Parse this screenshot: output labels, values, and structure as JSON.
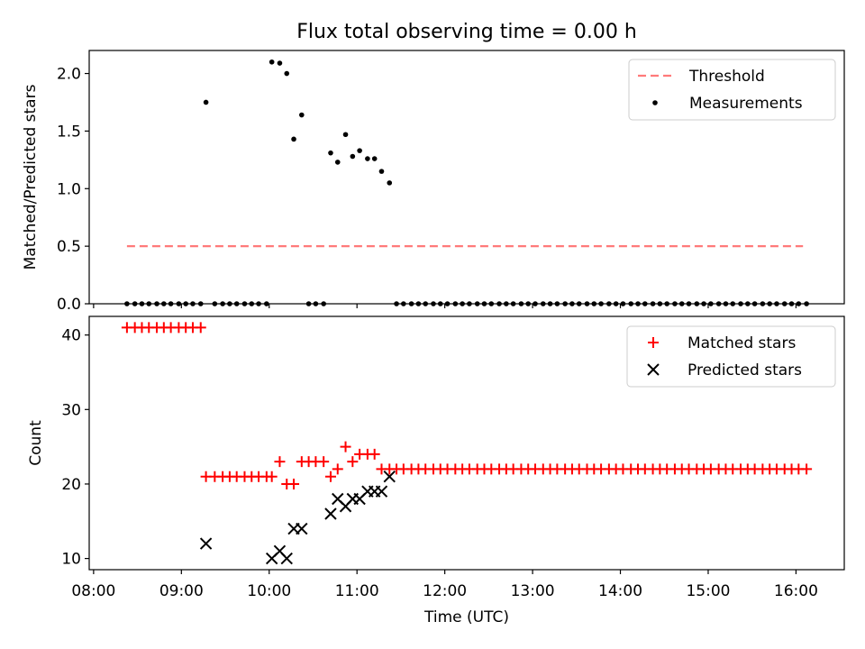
{
  "chart_data": [
    {
      "type": "scatter",
      "title": "Flux total observing time = 0.00 h",
      "xlabel": "",
      "ylabel": "Matched/Predicted stars",
      "xlim": [
        7.95,
        16.55
      ],
      "ylim": [
        0,
        2.2
      ],
      "yticks": [
        0.0,
        0.5,
        1.0,
        1.5,
        2.0
      ],
      "ytick_labels": [
        "0.0",
        "0.5",
        "1.0",
        "1.5",
        "2.0"
      ],
      "legend_position": "upper right",
      "series": [
        {
          "name": "Threshold",
          "kind": "line",
          "style": "dashed",
          "color": "#ff7a7a",
          "x": [
            8.38,
            16.08
          ],
          "values": [
            0.5,
            0.5
          ]
        },
        {
          "name": "Measurements",
          "kind": "scatter",
          "marker": "dot",
          "color": "#000000",
          "x": [
            8.38,
            8.47,
            8.55,
            8.63,
            8.72,
            8.8,
            8.88,
            8.97,
            9.05,
            9.13,
            9.22,
            9.28,
            9.38,
            9.47,
            9.55,
            9.63,
            9.72,
            9.8,
            9.88,
            9.97,
            10.03,
            10.12,
            10.2,
            10.28,
            10.37,
            10.45,
            10.53,
            10.62,
            10.7,
            10.78,
            10.87,
            10.95,
            11.03,
            11.12,
            11.2,
            11.28,
            11.37,
            11.45,
            11.53,
            11.62,
            11.7,
            11.78,
            11.87,
            11.95,
            12.03,
            12.12,
            12.2,
            12.28,
            12.37,
            12.45,
            12.53,
            12.62,
            12.7,
            12.78,
            12.87,
            12.95,
            13.03,
            13.12,
            13.2,
            13.28,
            13.37,
            13.45,
            13.53,
            13.62,
            13.7,
            13.78,
            13.87,
            13.95,
            14.03,
            14.12,
            14.2,
            14.28,
            14.37,
            14.45,
            14.53,
            14.62,
            14.7,
            14.78,
            14.87,
            14.95,
            15.03,
            15.12,
            15.2,
            15.28,
            15.37,
            15.45,
            15.53,
            15.62,
            15.7,
            15.78,
            15.87,
            15.95,
            16.03,
            16.12
          ],
          "values": [
            0,
            0,
            0,
            0,
            0,
            0,
            0,
            0,
            0,
            0,
            0,
            1.75,
            0,
            0,
            0,
            0,
            0,
            0,
            0,
            0,
            2.1,
            2.09,
            2.0,
            1.43,
            1.64,
            0,
            0,
            0,
            1.31,
            1.23,
            1.47,
            1.28,
            1.33,
            1.26,
            1.26,
            1.15,
            1.05,
            0,
            0,
            0,
            0,
            0,
            0,
            0,
            0,
            0,
            0,
            0,
            0,
            0,
            0,
            0,
            0,
            0,
            0,
            0,
            0,
            0,
            0,
            0,
            0,
            0,
            0,
            0,
            0,
            0,
            0,
            0,
            0,
            0,
            0,
            0,
            0,
            0,
            0,
            0,
            0,
            0,
            0,
            0,
            0,
            0,
            0,
            0,
            0,
            0,
            0,
            0,
            0,
            0,
            0,
            0,
            0,
            0
          ]
        }
      ]
    },
    {
      "type": "scatter",
      "title": "",
      "xlabel": "Time (UTC)",
      "ylabel": "Count",
      "xlim": [
        7.95,
        16.55
      ],
      "ylim": [
        8.5,
        42.5
      ],
      "yticks": [
        10,
        20,
        30,
        40
      ],
      "ytick_labels": [
        "10",
        "20",
        "30",
        "40"
      ],
      "xticks": [
        8,
        9,
        10,
        11,
        12,
        13,
        14,
        15,
        16
      ],
      "xtick_labels": [
        "08:00",
        "09:00",
        "10:00",
        "11:00",
        "12:00",
        "13:00",
        "14:00",
        "15:00",
        "16:00"
      ],
      "legend_position": "upper right",
      "series": [
        {
          "name": "Matched stars",
          "kind": "scatter",
          "marker": "plus",
          "color": "#ff0000",
          "x": [
            8.38,
            8.47,
            8.55,
            8.63,
            8.72,
            8.8,
            8.88,
            8.97,
            9.05,
            9.13,
            9.22,
            9.28,
            9.38,
            9.47,
            9.55,
            9.63,
            9.72,
            9.8,
            9.88,
            9.97,
            10.03,
            10.12,
            10.2,
            10.28,
            10.37,
            10.45,
            10.53,
            10.62,
            10.7,
            10.78,
            10.87,
            10.95,
            11.03,
            11.12,
            11.2,
            11.28,
            11.37,
            11.45,
            11.53,
            11.62,
            11.7,
            11.78,
            11.87,
            11.95,
            12.03,
            12.12,
            12.2,
            12.28,
            12.37,
            12.45,
            12.53,
            12.62,
            12.7,
            12.78,
            12.87,
            12.95,
            13.03,
            13.12,
            13.2,
            13.28,
            13.37,
            13.45,
            13.53,
            13.62,
            13.7,
            13.78,
            13.87,
            13.95,
            14.03,
            14.12,
            14.2,
            14.28,
            14.37,
            14.45,
            14.53,
            14.62,
            14.7,
            14.78,
            14.87,
            14.95,
            15.03,
            15.12,
            15.2,
            15.28,
            15.37,
            15.45,
            15.53,
            15.62,
            15.7,
            15.78,
            15.87,
            15.95,
            16.03,
            16.12
          ],
          "values": [
            41,
            41,
            41,
            41,
            41,
            41,
            41,
            41,
            41,
            41,
            41,
            21,
            21,
            21,
            21,
            21,
            21,
            21,
            21,
            21,
            21,
            23,
            20,
            20,
            23,
            23,
            23,
            23,
            21,
            22,
            25,
            23,
            24,
            24,
            24,
            22,
            22,
            22,
            22,
            22,
            22,
            22,
            22,
            22,
            22,
            22,
            22,
            22,
            22,
            22,
            22,
            22,
            22,
            22,
            22,
            22,
            22,
            22,
            22,
            22,
            22,
            22,
            22,
            22,
            22,
            22,
            22,
            22,
            22,
            22,
            22,
            22,
            22,
            22,
            22,
            22,
            22,
            22,
            22,
            22,
            22,
            22,
            22,
            22,
            22,
            22,
            22,
            22,
            22,
            22,
            22,
            22,
            22,
            22
          ]
        },
        {
          "name": "Predicted stars",
          "kind": "scatter",
          "marker": "x",
          "color": "#000000",
          "x": [
            9.28,
            10.03,
            10.12,
            10.2,
            10.28,
            10.37,
            10.7,
            10.78,
            10.87,
            10.95,
            11.03,
            11.12,
            11.2,
            11.28,
            11.37
          ],
          "values": [
            12,
            10,
            11,
            10,
            14,
            14,
            16,
            18,
            17,
            18,
            18,
            19,
            19,
            19,
            21
          ]
        }
      ]
    }
  ]
}
